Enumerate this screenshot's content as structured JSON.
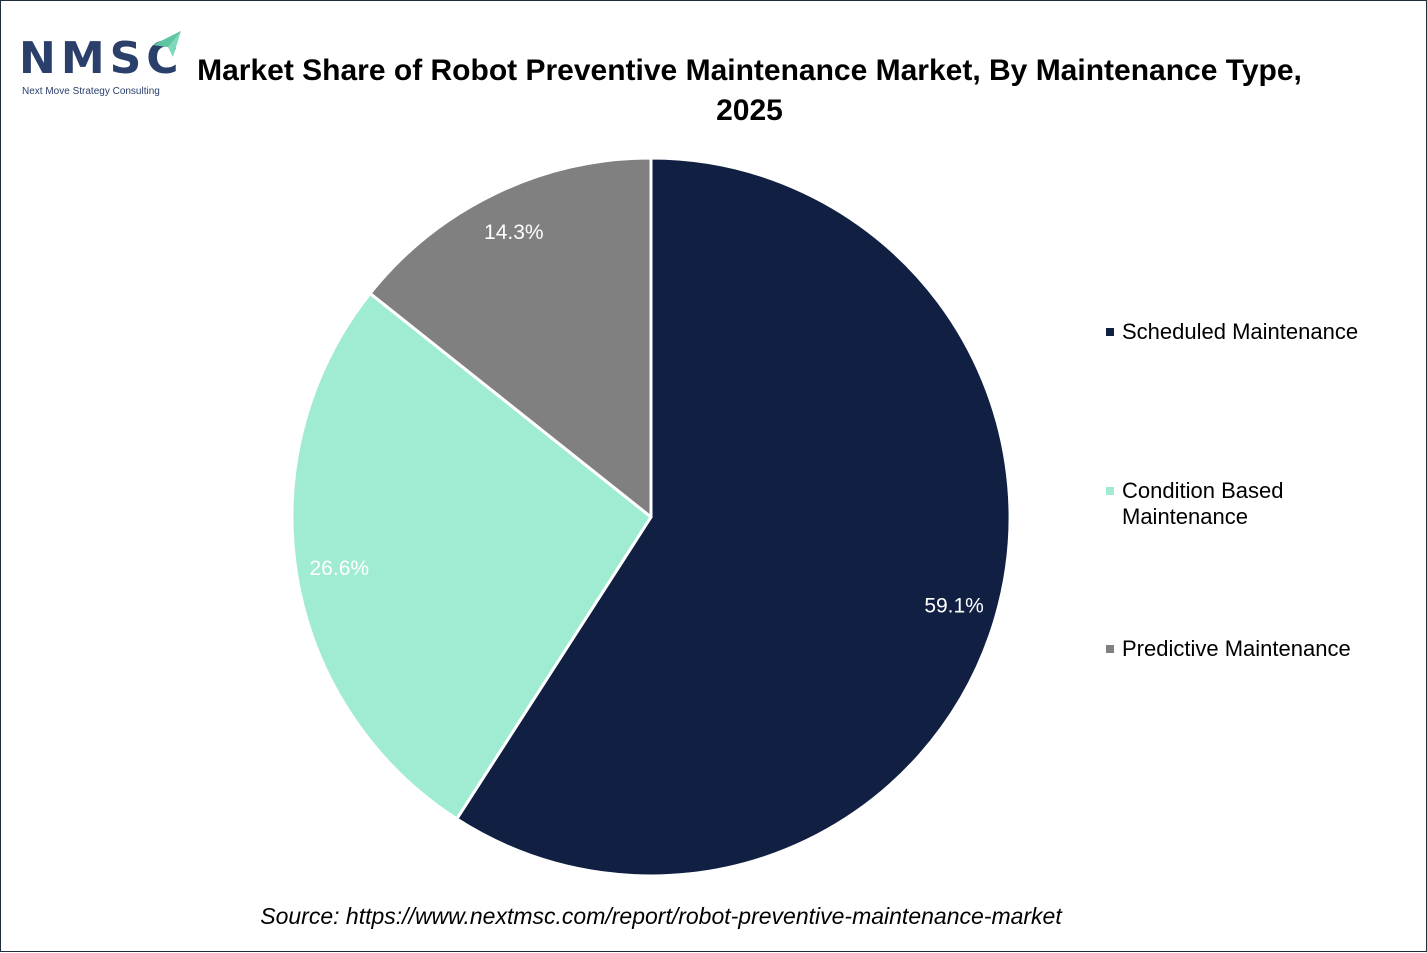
{
  "logo": {
    "letters": "NMSC",
    "tagline": "Next Move Strategy Consulting",
    "accent_color": "#7fd9b8",
    "brand_color": "#2b3f6b"
  },
  "source_text": "Source: https://www.nextmsc.com/report/robot-preventive-maintenance-market",
  "chart_data": {
    "type": "pie",
    "title": "Market Share of Robot Preventive Maintenance Market, By Maintenance Type, 2025",
    "legend_position": "right",
    "categories": [
      "Scheduled Maintenance",
      "Condition Based Maintenance",
      "Predictive Maintenance"
    ],
    "values": [
      59.1,
      26.6,
      14.3
    ],
    "data_labels": [
      "59.1%",
      "26.6%",
      "14.3%"
    ],
    "colors": [
      "#101f42",
      "#a0ecd2",
      "#808080"
    ],
    "start_angle_deg": 0,
    "direction": "clockwise"
  }
}
